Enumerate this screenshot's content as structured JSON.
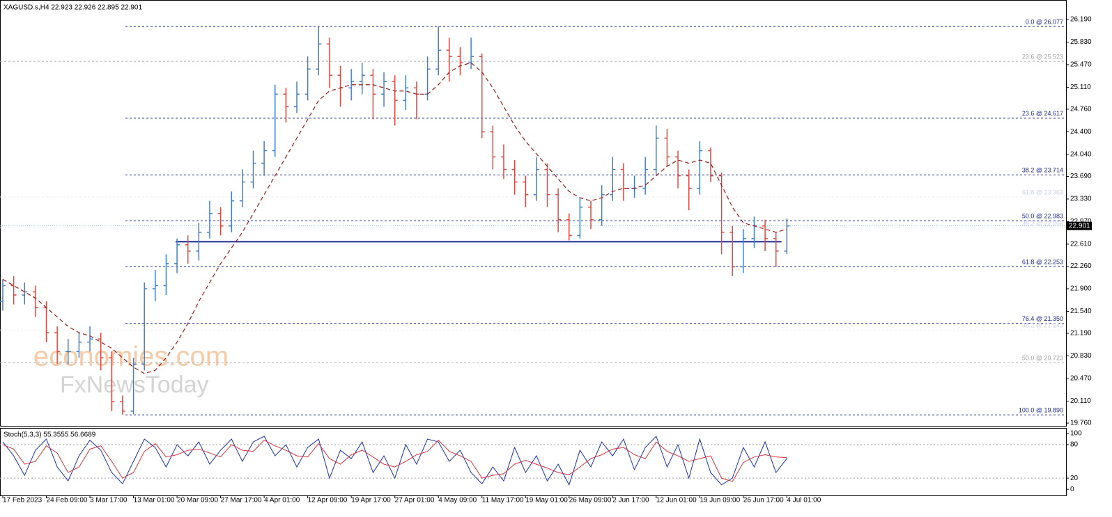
{
  "chart_data": [
    {
      "type": "ohlc",
      "title": "XAGUSD.s,H4  22.923 22.926 22.895 22.901",
      "watermark": [
        "economies.com",
        "FxNewsToday"
      ],
      "categories": [
        "17 Feb 2023",
        null,
        null,
        null,
        "24 Feb 09:00",
        null,
        null,
        null,
        "3 Mar 17:00",
        null,
        null,
        null,
        "13 Mar 01:00",
        null,
        null,
        null,
        "20 Mar 09:00",
        null,
        null,
        null,
        "27 Mar 17:00",
        null,
        null,
        null,
        "4 Apr 01:00",
        null,
        null,
        null,
        "12 Apr 09:00",
        null,
        null,
        null,
        "19 Apr 17:00",
        null,
        null,
        null,
        "27 Apr 01:00",
        null,
        null,
        null,
        "4 May 09:00",
        null,
        null,
        null,
        "11 May 17:00",
        null,
        null,
        null,
        "19 May 01:00",
        null,
        null,
        null,
        "26 May 09:00",
        null,
        null,
        null,
        "2 Jun 17:00",
        null,
        null,
        null,
        "12 Jun 01:00",
        null,
        null,
        null,
        "19 Jun 09:00",
        null,
        null,
        null,
        "26 Jun 17:00",
        null,
        null,
        null,
        "4 Jul 01:00"
      ],
      "open": [
        21.7,
        21.95,
        21.8,
        21.85,
        21.6,
        21.2,
        20.9,
        20.9,
        21.05,
        21.1,
        20.8,
        20.1,
        19.95,
        20.7,
        21.9,
        21.95,
        22.3,
        22.6,
        22.5,
        22.8,
        23.1,
        22.9,
        23.3,
        23.6,
        23.9,
        24.1,
        25.0,
        24.8,
        25.0,
        25.4,
        25.8,
        25.3,
        25.1,
        25.2,
        25.3,
        25.0,
        25.2,
        24.9,
        25.1,
        25.0,
        25.4,
        25.7,
        25.6,
        25.5,
        25.6,
        24.4,
        24.0,
        23.8,
        23.6,
        23.4,
        23.8,
        23.4,
        23.0,
        22.75,
        23.2,
        23.0,
        23.4,
        23.8,
        23.5,
        23.5,
        23.8,
        24.3,
        24.0,
        23.7,
        23.5,
        24.1,
        23.7,
        22.8,
        22.25,
        22.7,
        22.9,
        22.7,
        22.5
      ],
      "high": [
        22.05,
        22.1,
        22.0,
        21.95,
        21.7,
        21.3,
        21.1,
        21.2,
        21.3,
        21.2,
        20.9,
        20.2,
        20.8,
        22.0,
        22.2,
        22.45,
        22.7,
        22.75,
        22.95,
        23.3,
        23.2,
        23.45,
        23.8,
        24.1,
        24.25,
        25.15,
        25.1,
        25.2,
        25.6,
        26.07,
        25.9,
        25.45,
        25.4,
        25.5,
        25.4,
        25.35,
        25.3,
        25.3,
        25.2,
        25.6,
        26.08,
        25.9,
        25.75,
        25.9,
        25.65,
        24.5,
        24.2,
        23.95,
        23.7,
        24.0,
        23.9,
        23.5,
        23.1,
        23.35,
        23.3,
        23.55,
        24.0,
        23.9,
        23.7,
        24.0,
        24.5,
        24.45,
        24.1,
        23.8,
        24.25,
        24.15,
        23.75,
        22.9,
        22.85,
        23.05,
        23.0,
        22.8,
        23.02
      ],
      "low": [
        21.55,
        21.65,
        21.65,
        21.45,
        21.05,
        20.7,
        20.7,
        20.8,
        20.9,
        20.6,
        19.95,
        19.89,
        19.9,
        20.6,
        21.7,
        21.8,
        22.15,
        22.3,
        22.35,
        22.7,
        22.75,
        22.8,
        23.2,
        23.5,
        23.7,
        24.0,
        24.55,
        24.7,
        24.9,
        25.3,
        25.1,
        24.8,
        24.9,
        25.0,
        24.6,
        24.8,
        24.5,
        24.75,
        24.6,
        24.9,
        25.3,
        25.2,
        25.3,
        25.4,
        24.3,
        23.8,
        23.65,
        23.4,
        23.2,
        23.3,
        23.2,
        22.8,
        22.67,
        22.7,
        22.85,
        22.9,
        23.3,
        23.3,
        23.35,
        23.4,
        23.7,
        23.85,
        23.5,
        23.15,
        23.4,
        23.6,
        22.45,
        22.1,
        22.15,
        22.55,
        22.5,
        22.25,
        22.45
      ],
      "close": [
        21.95,
        21.8,
        21.85,
        21.6,
        21.2,
        20.9,
        20.9,
        21.05,
        21.1,
        20.8,
        20.1,
        19.95,
        20.7,
        21.9,
        21.95,
        22.3,
        22.6,
        22.5,
        22.8,
        23.1,
        22.9,
        23.3,
        23.6,
        23.9,
        24.1,
        25.0,
        24.8,
        25.0,
        25.4,
        25.8,
        25.3,
        25.1,
        25.2,
        25.3,
        25.0,
        25.2,
        24.9,
        25.1,
        25.0,
        25.4,
        25.7,
        25.6,
        25.5,
        25.6,
        24.4,
        24.0,
        23.8,
        23.6,
        23.4,
        23.8,
        23.4,
        23.0,
        22.75,
        23.2,
        23.0,
        23.4,
        23.8,
        23.5,
        23.5,
        23.8,
        24.3,
        24.0,
        23.7,
        23.5,
        24.1,
        23.7,
        22.8,
        22.25,
        22.7,
        22.9,
        22.7,
        22.5,
        22.9
      ],
      "up_color": "#3f7fd0",
      "down_color": "#e8453c",
      "ma": {
        "color": "#a01818",
        "values": [
          22.05,
          21.95,
          21.85,
          21.75,
          21.6,
          21.45,
          21.3,
          21.2,
          21.15,
          21.05,
          20.95,
          20.8,
          20.65,
          20.55,
          20.6,
          20.8,
          21.05,
          21.35,
          21.7,
          22.0,
          22.3,
          22.55,
          22.8,
          23.1,
          23.4,
          23.7,
          24.0,
          24.3,
          24.6,
          24.9,
          25.05,
          25.1,
          25.15,
          25.15,
          25.15,
          25.1,
          25.05,
          25.05,
          25.0,
          25.0,
          25.15,
          25.35,
          25.45,
          25.5,
          25.35,
          25.1,
          24.8,
          24.5,
          24.25,
          24.05,
          23.85,
          23.65,
          23.45,
          23.35,
          23.3,
          23.35,
          23.45,
          23.5,
          23.5,
          23.55,
          23.7,
          23.85,
          23.95,
          23.9,
          23.95,
          23.9,
          23.55,
          23.2,
          22.95,
          22.9,
          22.85,
          22.8,
          22.85
        ]
      },
      "fib_levels": [
        {
          "label": "0.0 @ 26.077",
          "price": 26.077,
          "style": "major"
        },
        {
          "label": "23.6 @ 25.523",
          "price": 25.523,
          "style": "minor"
        },
        {
          "label": "23.6 @ 24.617",
          "price": 24.617,
          "style": "major"
        },
        {
          "label": "38.2 @ 23.714",
          "price": 23.714,
          "style": "major"
        },
        {
          "label": "61.8 @ 23.363",
          "price": 23.363,
          "style": "faint"
        },
        {
          "label": "50.0 @ 22.983",
          "price": 22.983,
          "style": "major"
        },
        {
          "label": "38.2 @ 22.868",
          "price": 22.868,
          "style": "faint"
        },
        {
          "label": "61.8 @ 22.253",
          "price": 22.253,
          "style": "major"
        },
        {
          "label": "76.4 @ 21.350",
          "price": 21.35,
          "style": "major"
        },
        {
          "label": "38.2 @ 21.243",
          "price": 21.243,
          "style": "faint"
        },
        {
          "label": "50.0 @ 20.723",
          "price": 20.723,
          "style": "minor"
        },
        {
          "label": "100.0 @ 19.890",
          "price": 19.89,
          "style": "major"
        }
      ],
      "support": {
        "price": 22.65,
        "color": "#1c2a96"
      },
      "current_price": 22.901,
      "ylim": [
        19.716,
        26.5
      ],
      "yticks": [
        {
          "value": 26.19,
          "label": "26.190"
        },
        {
          "value": 25.83,
          "label": "25.830"
        },
        {
          "value": 25.47,
          "label": "25.470"
        },
        {
          "value": 25.11,
          "label": "25.110"
        },
        {
          "value": 24.76,
          "label": "24.760"
        },
        {
          "value": 24.4,
          "label": "24.400"
        },
        {
          "value": 24.04,
          "label": "24.040"
        },
        {
          "value": 23.69,
          "label": "23.690"
        },
        {
          "value": 23.33,
          "label": "23.330"
        },
        {
          "value": 22.97,
          "label": "22.970"
        },
        {
          "value": 22.61,
          "label": "22.610"
        },
        {
          "value": 22.26,
          "label": "22.260"
        },
        {
          "value": 21.9,
          "label": "21.900"
        },
        {
          "value": 21.54,
          "label": "21.540"
        },
        {
          "value": 21.19,
          "label": "21.190"
        },
        {
          "value": 20.83,
          "label": "20.830"
        },
        {
          "value": 20.47,
          "label": "20.470"
        },
        {
          "value": 20.11,
          "label": "20.110"
        },
        {
          "value": 19.76,
          "label": "19.760"
        }
      ]
    },
    {
      "type": "line",
      "title": "Stoch(5,3,3) 55.3555 56.6689",
      "series": [
        {
          "color": "#1a2fbf",
          "values": [
            85,
            60,
            25,
            70,
            90,
            40,
            15,
            60,
            88,
            70,
            30,
            10,
            50,
            90,
            75,
            40,
            80,
            60,
            85,
            45,
            70,
            90,
            50,
            85,
            95,
            60,
            80,
            40,
            75,
            90,
            20,
            70,
            55,
            85,
            30,
            60,
            20,
            80,
            45,
            90,
            85,
            50,
            70,
            30,
            10,
            40,
            15,
            75,
            30,
            60,
            15,
            45,
            8,
            70,
            40,
            85,
            60,
            90,
            35,
            75,
            95,
            40,
            80,
            20,
            90,
            30,
            8,
            20,
            75,
            40,
            85,
            30,
            55.3555
          ]
        },
        {
          "color": "#e0303a",
          "values": [
            80,
            72,
            45,
            50,
            78,
            65,
            30,
            40,
            72,
            78,
            50,
            20,
            30,
            68,
            82,
            58,
            62,
            70,
            72,
            65,
            58,
            80,
            70,
            68,
            88,
            78,
            70,
            60,
            58,
            82,
            55,
            45,
            62,
            70,
            58,
            45,
            40,
            50,
            62,
            68,
            88,
            68,
            60,
            50,
            20,
            25,
            28,
            45,
            52,
            45,
            38,
            30,
            26,
            40,
            55,
            62,
            72,
            75,
            62,
            55,
            85,
            68,
            60,
            50,
            55,
            60,
            20,
            14,
            48,
            58,
            62,
            58,
            56.6689
          ]
        }
      ],
      "level_lines": [
        80,
        20
      ],
      "ylim": [
        -11,
        110
      ],
      "yticks": [
        100,
        80,
        20,
        0
      ]
    }
  ]
}
